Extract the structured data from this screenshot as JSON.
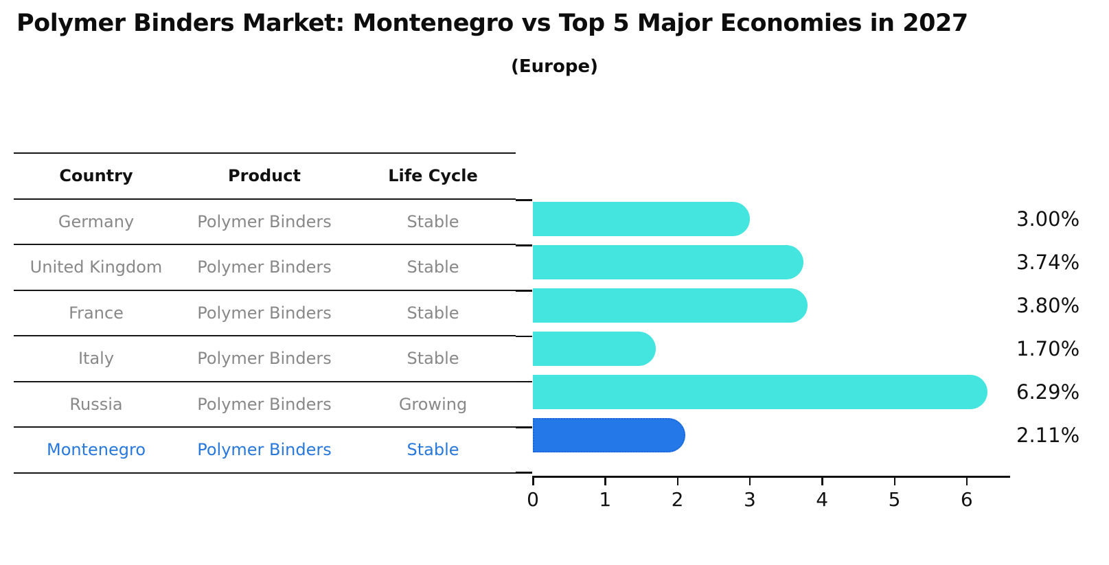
{
  "header": {
    "title": "Polymer Binders Market: Montenegro vs Top 5 Major Economies in 2027",
    "subtitle": "(Europe)"
  },
  "table": {
    "columns": [
      "Country",
      "Product",
      "Life Cycle"
    ],
    "rows": [
      {
        "country": "Germany",
        "product": "Polymer Binders",
        "life_cycle": "Stable",
        "highlight": false
      },
      {
        "country": "United Kingdom",
        "product": "Polymer Binders",
        "life_cycle": "Stable",
        "highlight": false
      },
      {
        "country": "France",
        "product": "Polymer Binders",
        "life_cycle": "Stable",
        "highlight": false
      },
      {
        "country": "Italy",
        "product": "Polymer Binders",
        "life_cycle": "Stable",
        "highlight": false
      },
      {
        "country": "Russia",
        "product": "Polymer Binders",
        "life_cycle": "Growing",
        "highlight": false
      },
      {
        "country": "Montenegro",
        "product": "Polymer Binders",
        "life_cycle": "Stable",
        "highlight": true
      }
    ]
  },
  "chart_data": {
    "type": "bar",
    "orientation": "horizontal",
    "title": "Polymer Binders Market: Montenegro vs Top 5 Major Economies in 2027",
    "subtitle": "(Europe)",
    "categories": [
      "Germany",
      "United Kingdom",
      "France",
      "Italy",
      "Russia",
      "Montenegro"
    ],
    "values": [
      3.0,
      3.74,
      3.8,
      1.7,
      6.29,
      2.11
    ],
    "value_labels": [
      "3.00%",
      "3.74%",
      "3.80%",
      "1.70%",
      "6.29%",
      "2.11%"
    ],
    "xlabel": "",
    "ylabel": "",
    "xlim": [
      0,
      6.6
    ],
    "xticks": [
      0,
      1,
      2,
      3,
      4,
      5,
      6
    ],
    "grid": false,
    "legend": false,
    "highlight_index": 5,
    "colors": {
      "bar_color": "#43e5de",
      "highlight_color": "#2478e8",
      "highlight_border": "#1d66d8",
      "highlight_text": "#2878dc",
      "axis_color": "#111111",
      "table_text": "#888888",
      "heading_text": "#0d0d0d"
    }
  }
}
